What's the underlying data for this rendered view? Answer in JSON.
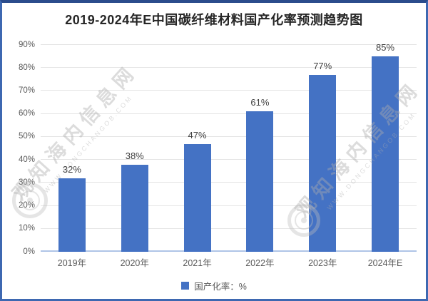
{
  "title": "2019-2024年E中国碳纤维材料国产化率预测趋势图",
  "chart_data": {
    "type": "bar",
    "title": "2019-2024年E中国碳纤维材料国产化率预测趋势图",
    "categories": [
      "2019年",
      "2020年",
      "2021年",
      "2022年",
      "2023年",
      "2024年E"
    ],
    "values": [
      32,
      38,
      47,
      61,
      77,
      85
    ],
    "data_labels": [
      "32%",
      "38%",
      "47%",
      "61%",
      "77%",
      "85%"
    ],
    "series_name": "国产化率：%",
    "xlabel": "",
    "ylabel": "",
    "ylim": [
      0,
      90
    ],
    "ytick_step": 10,
    "yticks": [
      "0%",
      "10%",
      "20%",
      "30%",
      "40%",
      "50%",
      "60%",
      "70%",
      "80%",
      "90%"
    ],
    "grid": true,
    "bar_color": "#4472C4",
    "legend_position": "bottom"
  },
  "legend": {
    "label": "国产化率：%",
    "swatch_color": "#4472C4"
  },
  "watermark": {
    "text": "观知海内信息网",
    "subtext": "WWW.DONGCHANGOB.COM"
  },
  "colors": {
    "bar": "#4472C4",
    "frame_border": "#3E68B1",
    "axis_line": "#AFC4E6",
    "gridline": "#E4E4E4",
    "title_text": "#262626",
    "tick_text": "#595959",
    "data_label_text": "#3F3F3F"
  }
}
